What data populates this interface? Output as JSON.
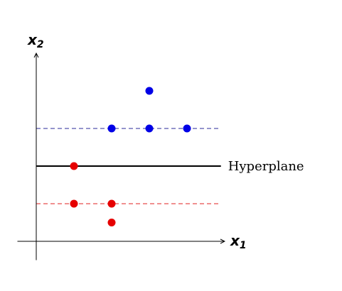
{
  "chart_data": {
    "type": "scatter",
    "x_axis_label": {
      "base": "x",
      "sub": "1"
    },
    "y_axis_label": {
      "base": "x",
      "sub": "2"
    },
    "x_range": [
      -0.5,
      5.0
    ],
    "y_range": [
      -0.5,
      5.0
    ],
    "hyperplane": {
      "y": 2.0,
      "label": "Hyperplane",
      "color": "#000000"
    },
    "margins": [
      {
        "y": 3.0,
        "color": "#2a2a9a",
        "style": "dashed"
      },
      {
        "y": 1.0,
        "color": "#e02020",
        "style": "dashed"
      }
    ],
    "series": [
      {
        "color": "#0000e6",
        "points": [
          [
            3,
            4
          ],
          [
            2,
            3
          ],
          [
            3,
            3
          ],
          [
            4,
            3
          ]
        ]
      },
      {
        "color": "#e60000",
        "points": [
          [
            1,
            2
          ],
          [
            1,
            1
          ],
          [
            2,
            1
          ],
          [
            2,
            0.5
          ]
        ]
      }
    ]
  }
}
